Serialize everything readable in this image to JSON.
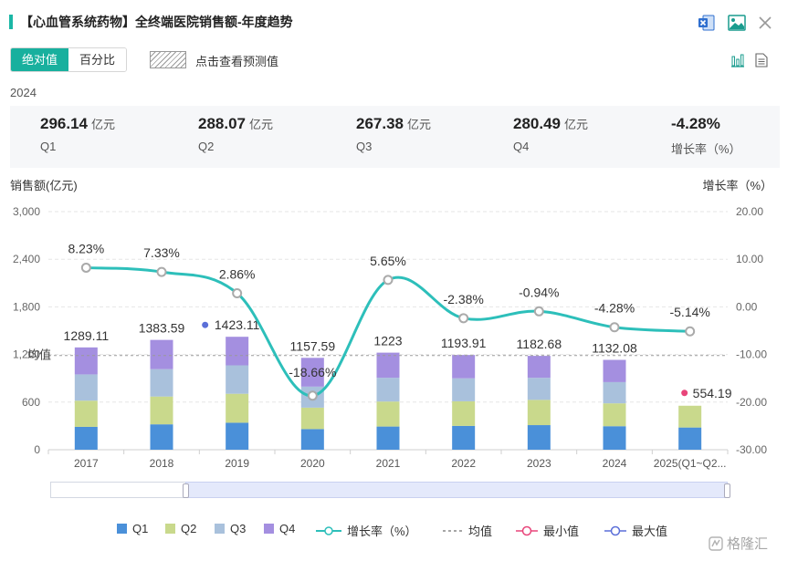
{
  "header": {
    "title": "【心血管系统药物】全终端医院销售额-年度趋势",
    "icons": [
      "excel-export-icon",
      "image-export-icon",
      "close-icon"
    ]
  },
  "toolbar": {
    "absolute_label": "绝对值",
    "percent_label": "百分比",
    "forecast_label": "点击查看预测值",
    "active_tab": "absolute",
    "accent_color": "#18b09e"
  },
  "summary": {
    "year": "2024",
    "items": [
      {
        "value": "296.14",
        "unit": "亿元",
        "label": "Q1"
      },
      {
        "value": "288.07",
        "unit": "亿元",
        "label": "Q2"
      },
      {
        "value": "267.38",
        "unit": "亿元",
        "label": "Q3"
      },
      {
        "value": "280.49",
        "unit": "亿元",
        "label": "Q4"
      },
      {
        "value": "-4.28%",
        "unit": "",
        "label": "增长率（%）"
      }
    ]
  },
  "chart_data": {
    "type": "bar",
    "stacked": true,
    "categories": [
      "2017",
      "2018",
      "2019",
      "2020",
      "2021",
      "2022",
      "2023",
      "2024",
      "2025(Q1~Q2..."
    ],
    "series": [
      {
        "name": "Q1",
        "color": "#4a90d9",
        "values": [
          288,
          320,
          340,
          260,
          292,
          300,
          310,
          296.14,
          280
        ]
      },
      {
        "name": "Q2",
        "color": "#c9d98c",
        "values": [
          330,
          350,
          365,
          270,
          315,
          310,
          318,
          288.07,
          274.19
        ]
      },
      {
        "name": "Q3",
        "color": "#a9c1dc",
        "values": [
          331,
          345,
          358,
          265,
          300,
          290,
          278,
          267.38,
          0
        ]
      },
      {
        "name": "Q4",
        "color": "#a48fe0",
        "values": [
          340.11,
          368.59,
          360.11,
          362.59,
          316,
          293.91,
          276.68,
          280.49,
          0
        ]
      }
    ],
    "totals": [
      "1289.11",
      "1383.59",
      "1423.11",
      "1157.59",
      "1223",
      "1193.91",
      "1182.68",
      "1132.08",
      "554.19"
    ],
    "growth": {
      "name": "增长率（%）",
      "color": "#2dbfba",
      "values": [
        8.23,
        7.33,
        2.86,
        -18.66,
        5.65,
        -2.38,
        -0.94,
        -4.28,
        -5.14
      ],
      "labels": [
        "8.23%",
        "7.33%",
        "2.86%",
        "-18.66%",
        "5.65%",
        "-2.38%",
        "-0.94%",
        "-4.28%",
        "-5.14%"
      ]
    },
    "average": {
      "name": "均值",
      "label": "均值",
      "value": 1187
    },
    "min_marker": {
      "name": "最小值",
      "category": "2025(Q1~Q2...",
      "color": "#e8457a"
    },
    "max_marker": {
      "name": "最大值",
      "category": "2019",
      "color": "#5b6fd8"
    },
    "ylabel": "销售额(亿元)",
    "y2label": "增长率（%）",
    "ylim": [
      0,
      3000
    ],
    "y2lim": [
      -30,
      20
    ],
    "yticks": [
      "0",
      "600",
      "1,200",
      "1,800",
      "2,400",
      "3,000"
    ],
    "y2ticks": [
      "-30.00",
      "-20.00",
      "-10.00",
      "0.00",
      "10.00",
      "20.00"
    ],
    "grid": true,
    "legend_position": "bottom"
  },
  "legend": {
    "items": [
      {
        "label": "Q1",
        "kind": "square",
        "color": "#4a90d9"
      },
      {
        "label": "Q2",
        "kind": "square",
        "color": "#c9d98c"
      },
      {
        "label": "Q3",
        "kind": "square",
        "color": "#a9c1dc"
      },
      {
        "label": "Q4",
        "kind": "square",
        "color": "#a48fe0"
      },
      {
        "label": "增长率（%）",
        "kind": "line",
        "color": "#2dbfba"
      },
      {
        "label": "均值",
        "kind": "dash",
        "color": "#888888"
      },
      {
        "label": "最小值",
        "kind": "ring",
        "color": "#e8457a"
      },
      {
        "label": "最大值",
        "kind": "ring",
        "color": "#5b6fd8"
      }
    ]
  }
}
